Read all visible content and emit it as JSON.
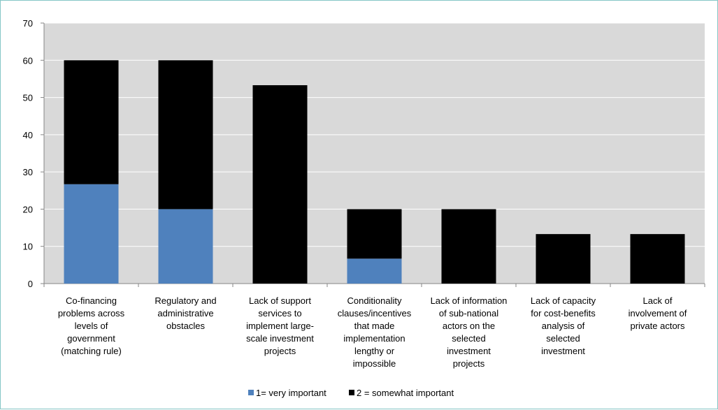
{
  "chart_data": {
    "type": "bar",
    "stacked": true,
    "categories": [
      "Co-financing problems across levels of government (matching rule)",
      "Regulatory and administrative obstacles",
      "Lack of support services to implement large-scale investment projects",
      "Conditionality clauses/incentives that made implementation lengthy or impossible",
      "Lack of information of sub-national actors on the selected investment projects",
      "Lack of capacity for cost-benefits analysis of selected investment",
      "Lack of involvement of private actors"
    ],
    "category_lines": [
      [
        "Co-financing",
        "problems across",
        "levels of",
        "government",
        "(matching rule)"
      ],
      [
        "Regulatory and",
        "administrative",
        "obstacles"
      ],
      [
        "Lack of support",
        "services to",
        "implement large-",
        "scale investment",
        "projects"
      ],
      [
        "Conditionality",
        "clauses/incentives",
        "that made",
        "implementation",
        "lengthy or",
        "impossible"
      ],
      [
        "Lack of information",
        "of sub-national",
        "actors on the",
        "selected",
        "investment",
        "projects"
      ],
      [
        "Lack of capacity",
        "for cost-benefits",
        "analysis of",
        "selected",
        "investment"
      ],
      [
        "Lack of",
        "involvement of",
        "private actors"
      ]
    ],
    "series": [
      {
        "name": "1= very important",
        "color": "#4f81bd",
        "values": [
          26.7,
          20,
          0,
          6.7,
          0,
          0,
          0
        ]
      },
      {
        "name": "2 = somewhat important",
        "color": "#000000",
        "values": [
          33.3,
          40,
          53.3,
          13.3,
          20,
          13.3,
          13.3
        ]
      }
    ],
    "yticks": [
      0,
      10,
      20,
      30,
      40,
      50,
      60,
      70
    ],
    "ylim": [
      0,
      70
    ],
    "grid": true,
    "plot_background": "#d9d9d9",
    "legend_position": "bottom"
  }
}
